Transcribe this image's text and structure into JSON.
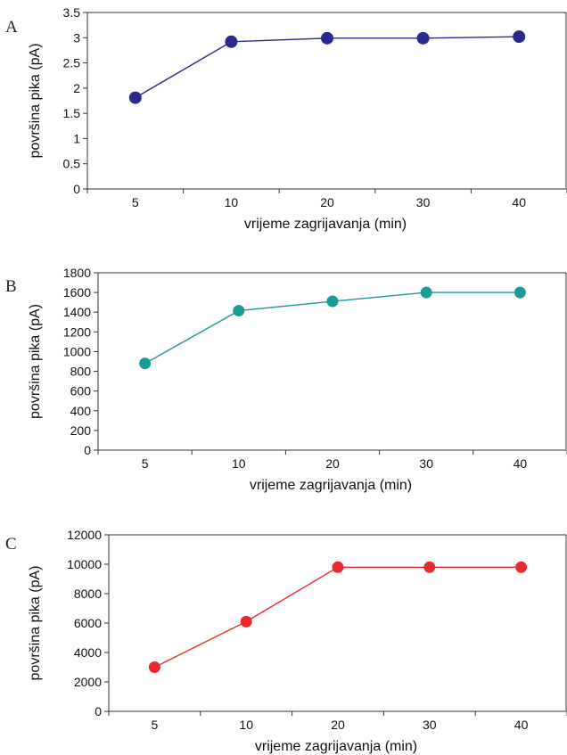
{
  "chart_data": [
    {
      "type": "line",
      "panel_label": "A",
      "categories": [
        "5",
        "10",
        "20",
        "30",
        "40"
      ],
      "series": [
        {
          "values": [
            1.81,
            2.92,
            2.99,
            2.99,
            3.02
          ]
        }
      ],
      "xlabel": "vrijeme zagrijavanja (min)",
      "ylabel": "površina pika (pA)",
      "ylim": [
        0,
        3.5
      ],
      "yticks": [
        0,
        0.5,
        1,
        1.5,
        2,
        2.5,
        3,
        3.5
      ],
      "color": "#2b2a8c",
      "grid": false
    },
    {
      "type": "line",
      "panel_label": "B",
      "categories": [
        "5",
        "10",
        "20",
        "30",
        "40"
      ],
      "series": [
        {
          "values": [
            880,
            1415,
            1510,
            1600,
            1600
          ]
        }
      ],
      "xlabel": "vrijeme zagrijavanja (min)",
      "ylabel": "površina pika (pA)",
      "ylim": [
        0,
        1800
      ],
      "yticks": [
        0,
        200,
        400,
        600,
        800,
        1000,
        1200,
        1400,
        1600,
        1800
      ],
      "color": "#1b9a96",
      "grid": false
    },
    {
      "type": "line",
      "panel_label": "C",
      "categories": [
        "5",
        "10",
        "20",
        "30",
        "40"
      ],
      "series": [
        {
          "values": [
            3000,
            6100,
            9800,
            9800,
            9800
          ]
        }
      ],
      "xlabel": "vrijeme zagrijavanja (min)",
      "ylabel": "površina pika (pA)",
      "ylim": [
        0,
        12000
      ],
      "yticks": [
        0,
        2000,
        4000,
        6000,
        8000,
        10000,
        12000
      ],
      "color": "#ea2a2f",
      "grid": false
    }
  ]
}
